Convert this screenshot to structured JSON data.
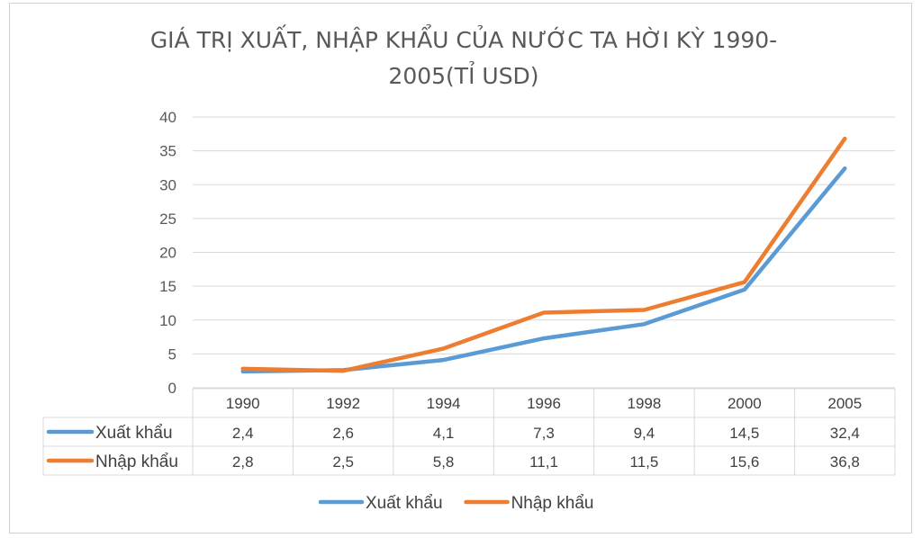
{
  "chart_data": {
    "type": "line",
    "title_lines": [
      "GIÁ TRỊ XUẤT, NHẬP KHẨU CỦA NƯỚC TA HỜI KỲ 1990-",
      "2005(TỈ USD)"
    ],
    "xlabel": "",
    "ylabel": "",
    "categories": [
      "1990",
      "1992",
      "1994",
      "1996",
      "1998",
      "2000",
      "2005"
    ],
    "ylim": [
      0,
      40
    ],
    "yticks": [
      0,
      5,
      10,
      15,
      20,
      25,
      30,
      35,
      40
    ],
    "grid": true,
    "legend_position": "bottom",
    "data_table": true,
    "series": [
      {
        "name": "Xuất khẩu",
        "color": "#5b9bd5",
        "values": [
          2.4,
          2.6,
          4.1,
          7.3,
          9.4,
          14.5,
          32.4
        ],
        "labels": [
          "2,4",
          "2,6",
          "4,1",
          "7,3",
          "9,4",
          "14,5",
          "32,4"
        ]
      },
      {
        "name": "Nhập khẩu",
        "color": "#ed7d31",
        "values": [
          2.8,
          2.5,
          5.8,
          11.1,
          11.5,
          15.6,
          36.8
        ],
        "labels": [
          "2,8",
          "2,5",
          "5,8",
          "11,1",
          "11,5",
          "15,6",
          "36,8"
        ]
      }
    ]
  }
}
